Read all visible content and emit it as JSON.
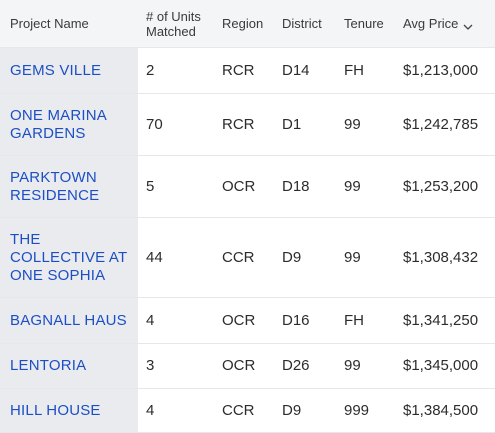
{
  "table": {
    "headers": {
      "project_name": "Project Name",
      "units_matched": "# of Units Matched",
      "region": "Region",
      "district": "District",
      "tenure": "Tenure",
      "avg_price": "Avg Price"
    },
    "sort_icon": "chevron-down-icon",
    "link_color": "#1d4fc4",
    "rows": [
      {
        "name": "GEMS VILLE",
        "units": "2",
        "region": "RCR",
        "district": "D14",
        "tenure": "FH",
        "price": "$1,213,000"
      },
      {
        "name": "ONE MARINA GARDENS",
        "units": "70",
        "region": "RCR",
        "district": "D1",
        "tenure": "99",
        "price": "$1,242,785"
      },
      {
        "name": "PARKTOWN RESIDENCE",
        "units": "5",
        "region": "OCR",
        "district": "D18",
        "tenure": "99",
        "price": "$1,253,200"
      },
      {
        "name": "THE COLLECTIVE AT ONE SOPHIA",
        "units": "44",
        "region": "CCR",
        "district": "D9",
        "tenure": "99",
        "price": "$1,308,432"
      },
      {
        "name": "BAGNALL HAUS",
        "units": "4",
        "region": "OCR",
        "district": "D16",
        "tenure": "FH",
        "price": "$1,341,250"
      },
      {
        "name": "LENTORIA",
        "units": "3",
        "region": "OCR",
        "district": "D26",
        "tenure": "99",
        "price": "$1,345,000"
      },
      {
        "name": "HILL HOUSE",
        "units": "4",
        "region": "CCR",
        "district": "D9",
        "tenure": "999",
        "price": "$1,384,500"
      }
    ]
  }
}
